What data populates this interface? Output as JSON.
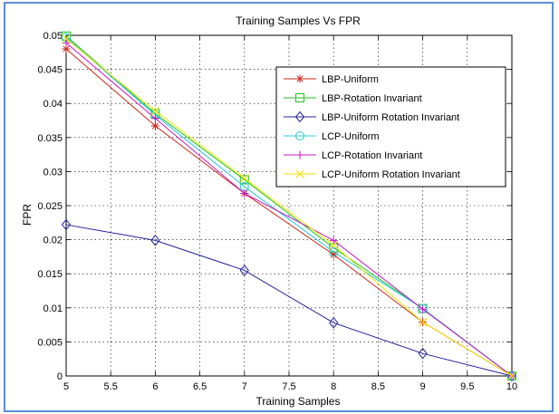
{
  "chart_data": {
    "type": "line",
    "title": "Training Samples Vs FPR",
    "xlabel": "Training Samples",
    "ylabel": "FPR",
    "xlim": [
      5,
      10
    ],
    "ylim": [
      0,
      0.05
    ],
    "x_ticks": [
      "5",
      "5.5",
      "6",
      "6.5",
      "7",
      "7.5",
      "8",
      "8.5",
      "9",
      "9.5",
      "10"
    ],
    "y_ticks": [
      "0",
      "0.005",
      "0.01",
      "0.015",
      "0.02",
      "0.025",
      "0.03",
      "0.035",
      "0.04",
      "0.045",
      "0.05"
    ],
    "grid": true,
    "legend_position": "top-right",
    "series": [
      {
        "name": "LBP-Uniform",
        "color": "#cc2a1e",
        "marker": "asterisk",
        "x": [
          5,
          6,
          7,
          8,
          9,
          10
        ],
        "y": [
          0.048,
          0.0367,
          0.0268,
          0.0178,
          0.0079,
          0
        ]
      },
      {
        "name": "LBP-Rotation Invariant",
        "color": "#22c422",
        "marker": "square",
        "x": [
          5,
          6,
          7,
          8,
          9,
          10
        ],
        "y": [
          0.0499,
          0.0385,
          0.0288,
          0.0188,
          0.0099,
          0
        ]
      },
      {
        "name": "LBP-Uniform Rotation Invariant",
        "color": "#24249a",
        "marker": "diamond",
        "x": [
          5,
          6,
          7,
          8,
          9,
          10
        ],
        "y": [
          0.0222,
          0.0199,
          0.0155,
          0.0078,
          0.0033,
          0
        ]
      },
      {
        "name": "LCP-Uniform",
        "color": "#27c8d8",
        "marker": "circle",
        "x": [
          5,
          6,
          7,
          8,
          9,
          10
        ],
        "y": [
          0.0497,
          0.0383,
          0.0278,
          0.0182,
          0.0099,
          0
        ]
      },
      {
        "name": "LCP-Rotation Invariant",
        "color": "#c619c6",
        "marker": "plus",
        "x": [
          5,
          6,
          7,
          8,
          9,
          10
        ],
        "y": [
          0.0489,
          0.0378,
          0.0268,
          0.0199,
          0.0098,
          0
        ]
      },
      {
        "name": "LCP-Uniform Rotation Invariant",
        "color": "#f2e300",
        "marker": "x",
        "x": [
          5,
          6,
          7,
          8,
          9,
          10
        ],
        "y": [
          0.0495,
          0.0389,
          0.029,
          0.0192,
          0.0079,
          0
        ]
      }
    ]
  }
}
